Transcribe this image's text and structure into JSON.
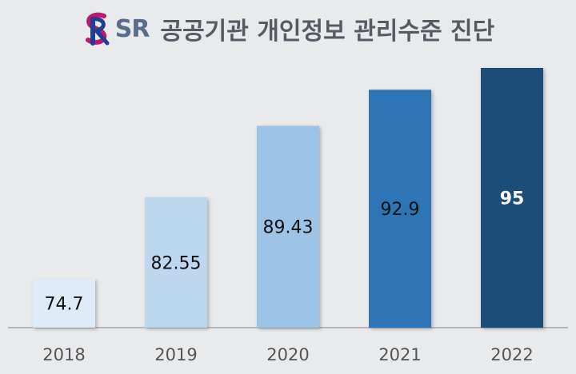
{
  "header": {
    "logo_text": "SR",
    "title": "공공기관 개인정보 관리수준 진단"
  },
  "chart_data": {
    "type": "bar",
    "title": "공공기관 개인정보 관리수준 진단",
    "xlabel": "",
    "ylabel": "",
    "categories": [
      "2018",
      "2019",
      "2020",
      "2021",
      "2022"
    ],
    "values": [
      74.7,
      82.55,
      89.43,
      92.9,
      95
    ],
    "value_labels": [
      "74.7",
      "82.55",
      "89.43",
      "92.9",
      "95"
    ],
    "bar_colors": [
      "#deebf7",
      "#bdd7ee",
      "#9dc3e6",
      "#2e75b6",
      "#1f4e79"
    ],
    "label_colors": [
      "#111111",
      "#111111",
      "#111111",
      "#111111",
      "#ffffff"
    ],
    "ylim": [
      70,
      96
    ],
    "grid": false,
    "legend": "none"
  }
}
